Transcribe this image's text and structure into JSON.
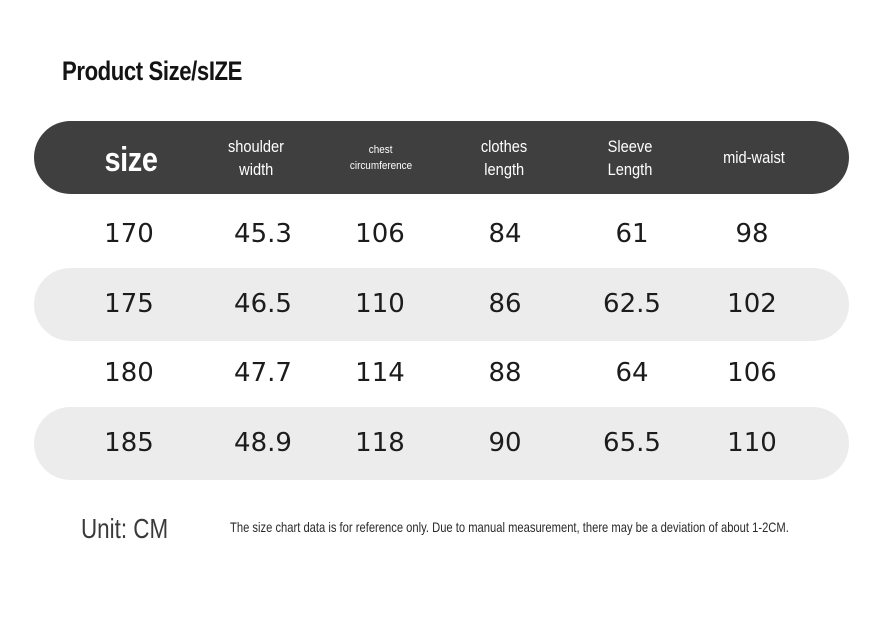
{
  "title": "Product Size/sIZE",
  "header": {
    "size": "size",
    "shoulder": [
      "shoulder",
      "width"
    ],
    "chest": [
      "chest",
      "circumference"
    ],
    "clothes": [
      "clothes",
      "length"
    ],
    "sleeve": [
      "Sleeve",
      "Length"
    ],
    "waist": "mid-waist"
  },
  "rows": [
    {
      "size": "170",
      "shoulder": "45.3",
      "chest": "106",
      "clothes": "84",
      "sleeve": "61",
      "waist": "98"
    },
    {
      "size": "175",
      "shoulder": "46.5",
      "chest": "110",
      "clothes": "86",
      "sleeve": "62.5",
      "waist": "102"
    },
    {
      "size": "180",
      "shoulder": "47.7",
      "chest": "114",
      "clothes": "88",
      "sleeve": "64",
      "waist": "106"
    },
    {
      "size": "185",
      "shoulder": "48.9",
      "chest": "118",
      "clothes": "90",
      "sleeve": "65.5",
      "waist": "110"
    }
  ],
  "unit": "Unit: CM",
  "note": "The size chart data is for reference only. Due to manual measurement, there may be a deviation of about 1-2CM.",
  "colors": {
    "header_bg": "#3f3f3f",
    "row_shade": "#ececec"
  }
}
